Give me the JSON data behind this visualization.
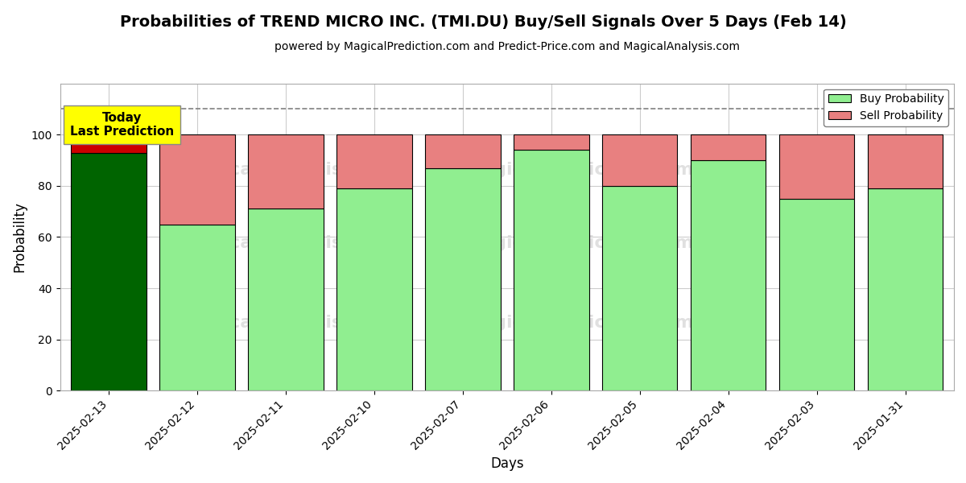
{
  "title": "Probabilities of TREND MICRO INC. (TMI.DU) Buy/Sell Signals Over 5 Days (Feb 14)",
  "subtitle": "powered by MagicalPrediction.com and Predict-Price.com and MagicalAnalysis.com",
  "xlabel": "Days",
  "ylabel": "Probability",
  "dates": [
    "2025-02-13",
    "2025-02-12",
    "2025-02-11",
    "2025-02-10",
    "2025-02-07",
    "2025-02-06",
    "2025-02-05",
    "2025-02-04",
    "2025-02-03",
    "2025-01-31"
  ],
  "buy_values": [
    93,
    65,
    71,
    79,
    87,
    94,
    80,
    90,
    75,
    79
  ],
  "sell_values": [
    7,
    35,
    29,
    21,
    13,
    6,
    20,
    10,
    25,
    21
  ],
  "today_bar_color": "#006400",
  "today_sell_color": "#cc0000",
  "buy_color": "#90ee90",
  "sell_color": "#e88080",
  "today_annotation_text": "Today\nLast Prediction",
  "today_annotation_bg": "#ffff00",
  "dashed_line_y": 110,
  "ylim": [
    0,
    120
  ],
  "yticks": [
    0,
    20,
    40,
    60,
    80,
    100
  ],
  "legend_buy": "Buy Probability",
  "legend_sell": "Sell Probability",
  "bg_color": "#ffffff",
  "grid_color": "#cccccc",
  "bar_edge_color": "#000000",
  "bar_width": 0.85
}
